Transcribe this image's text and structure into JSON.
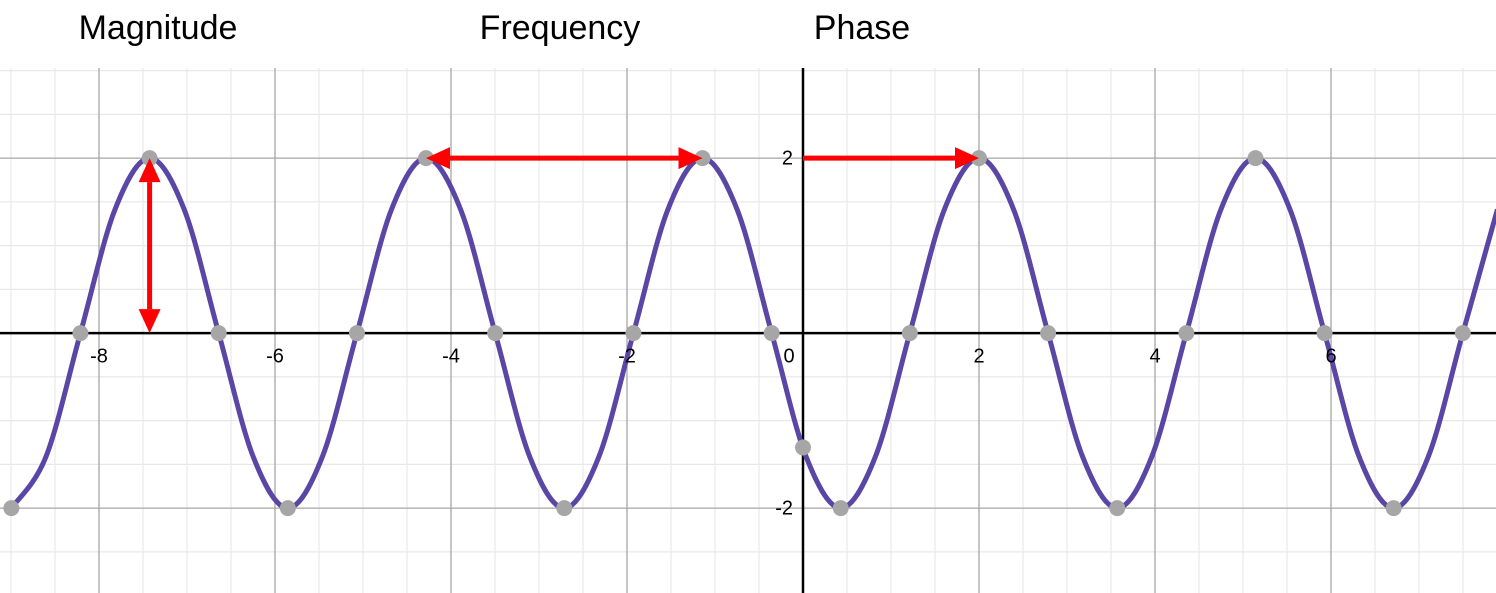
{
  "chart_data": {
    "type": "line",
    "annotations": [
      "Magnitude",
      "Frequency",
      "Phase"
    ],
    "xlim": [
      -9.125,
      7.875
    ],
    "ylim": [
      -2.97,
      3.03
    ],
    "xticks": [
      -8,
      -6,
      -4,
      -2,
      0,
      2,
      4,
      6
    ],
    "yticks": [
      -2,
      2
    ],
    "minor_grid": 0.5,
    "grid": true,
    "curve": {
      "color": "#5b46a5",
      "x": [
        -8.996,
        -8.603,
        -8.211,
        -7.818,
        -7.425,
        -7.032,
        -6.64,
        -6.247,
        -5.854,
        -5.462,
        -5.069,
        -4.676,
        -4.284,
        -3.891,
        -3.498,
        -3.105,
        -2.713,
        -2.32,
        -1.927,
        -1.535,
        -1.142,
        -0.749,
        -0.356,
        0.036,
        0.429,
        0.822,
        1.214,
        1.607,
        2.0,
        2.393,
        2.785,
        3.178,
        3.571,
        3.963,
        4.356,
        4.749,
        5.142,
        5.534,
        5.927,
        6.32,
        6.712,
        7.105,
        7.498,
        7.891
      ],
      "values": [
        -2,
        -1.414,
        0,
        1.414,
        2,
        1.414,
        0,
        -1.414,
        -2,
        -1.414,
        0,
        1.414,
        2,
        1.414,
        0,
        -1.414,
        -2,
        -1.414,
        0,
        1.414,
        2,
        1.414,
        0,
        -1.414,
        -2,
        -1.414,
        0,
        1.414,
        2,
        1.414,
        0,
        -1.414,
        -2,
        -1.414,
        0,
        1.414,
        2,
        1.414,
        0,
        -1.414,
        -2,
        -1.414,
        0,
        1.414
      ]
    },
    "points": {
      "color": "#a6a6a6",
      "x": [
        -8.996,
        -8.211,
        -7.425,
        -6.64,
        -5.854,
        -5.069,
        -4.284,
        -3.498,
        -2.713,
        -1.927,
        -1.142,
        -0.356,
        0,
        0.429,
        1.214,
        2.0,
        2.785,
        3.571,
        4.356,
        5.142,
        5.927,
        6.712,
        7.498
      ],
      "values": [
        -2,
        0,
        2,
        0,
        -2,
        0,
        2,
        0,
        -2,
        0,
        2,
        0,
        -1.307,
        -2,
        0,
        2,
        0,
        -2,
        0,
        2,
        0,
        -2,
        0
      ]
    },
    "arrows": [
      {
        "from": [
          -7.425,
          0
        ],
        "to": [
          -7.425,
          2
        ],
        "heads": 2,
        "color": "#ff0000"
      },
      {
        "from": [
          -4.284,
          2
        ],
        "to": [
          -1.142,
          2
        ],
        "heads": 2,
        "color": "#ff0000"
      },
      {
        "from": [
          0,
          2
        ],
        "to": [
          2.0,
          2
        ],
        "heads": 1,
        "color": "#ff0000"
      }
    ]
  }
}
